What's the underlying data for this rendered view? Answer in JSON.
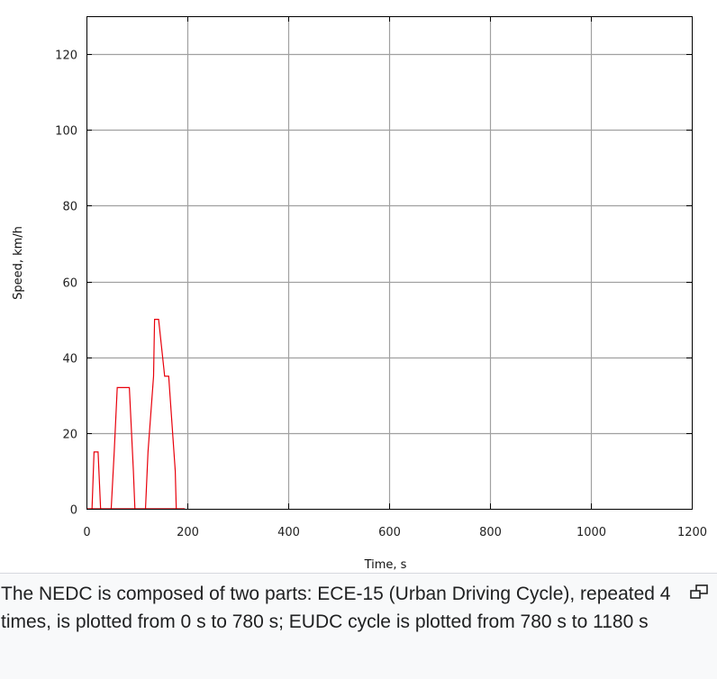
{
  "chart_data": {
    "type": "line",
    "title": "",
    "xlabel": "Time, s",
    "ylabel": "Speed, km/h",
    "xlim": [
      0,
      1200
    ],
    "ylim": [
      0,
      130
    ],
    "xticks": [
      0,
      200,
      400,
      600,
      800,
      1000,
      1200
    ],
    "yticks": [
      0,
      20,
      40,
      60,
      80,
      100,
      120
    ],
    "grid": true,
    "series": [
      {
        "color": "#e8000b",
        "x": [
          0,
          11,
          15,
          23,
          28,
          49,
          55,
          61,
          85,
          93,
          96,
          117,
          122,
          133,
          135,
          143,
          155,
          163,
          176,
          178,
          185,
          188,
          195,
          0
        ],
        "y": [
          0,
          0,
          15,
          15,
          0,
          0,
          15,
          32,
          32,
          10,
          0,
          0,
          15,
          35,
          50,
          50,
          35,
          35,
          10,
          0,
          0,
          0,
          0,
          0
        ]
      }
    ],
    "notes": "ECE-15 urban cycle repeated 4 times (0–780 s) followed by EUDC (780–1180 s)"
  },
  "caption": {
    "text": "The NEDC is composed of two parts: ECE-15 (Urban Driving Cycle), repeated 4 times, is plotted from 0 s to 780 s; EUDC cycle is plotted from 780 s to 1180 s",
    "enlarge_icon": "enlarge-icon"
  },
  "colors": {
    "line": "#e8000b",
    "grid": "#a0a0a0",
    "frame": "#000000",
    "caption_bg": "#f8f9fa"
  }
}
